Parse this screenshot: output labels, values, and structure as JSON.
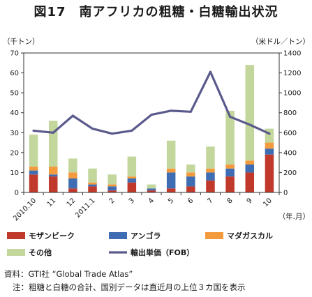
{
  "title": "図17　南アフリカの粗糖・白糖輸出状況",
  "left_unit": "（千トン）",
  "right_unit": "（米ドル／トン）",
  "x_unit": "（年.月）",
  "source": "資料：GTI社 “Global Trade Atlas”",
  "note": "注：粗糖と白糖の合計、国別データは直近月の上位３カ国を表示",
  "chart_data": {
    "type": "bar",
    "stacked": true,
    "categories": [
      "2010.10",
      "11",
      "12",
      "2011.1",
      "2",
      "3",
      "4",
      "5",
      "6",
      "7",
      "8",
      "9",
      "10"
    ],
    "ylim_left": [
      0,
      70
    ],
    "yticks_left": [
      0,
      10,
      20,
      30,
      40,
      50,
      60,
      70
    ],
    "ylim_right": [
      0,
      1400
    ],
    "yticks_right": [
      0,
      200,
      400,
      600,
      800,
      1000,
      1200,
      1400
    ],
    "grid": false,
    "legend_position": "bottom",
    "series": [
      {
        "name": "モザンビーク",
        "color": "#c0392b",
        "axis": "left",
        "values": [
          9,
          8,
          2,
          3,
          1,
          5,
          1,
          2,
          3,
          6,
          8,
          10,
          19
        ]
      },
      {
        "name": "アンゴラ",
        "color": "#3f6db3",
        "axis": "left",
        "values": [
          2,
          1,
          5,
          1,
          2,
          2,
          1,
          8,
          5,
          4,
          4,
          4,
          3
        ]
      },
      {
        "name": "マダガスカル",
        "color": "#f39a3d",
        "axis": "left",
        "values": [
          2,
          4,
          3,
          1,
          1,
          1,
          0,
          2,
          2,
          2,
          2,
          2,
          3
        ]
      },
      {
        "name": "その他",
        "color": "#c3d69b",
        "axis": "left",
        "values": [
          16,
          23,
          7,
          7,
          5,
          10,
          2,
          14,
          4,
          11,
          27,
          48,
          7
        ]
      },
      {
        "name": "輸出単価（FOB）",
        "color": "#5b5a8c",
        "axis": "right",
        "type": "line",
        "values": [
          620,
          600,
          770,
          640,
          590,
          620,
          780,
          820,
          810,
          1210,
          760,
          680,
          590
        ]
      }
    ]
  }
}
